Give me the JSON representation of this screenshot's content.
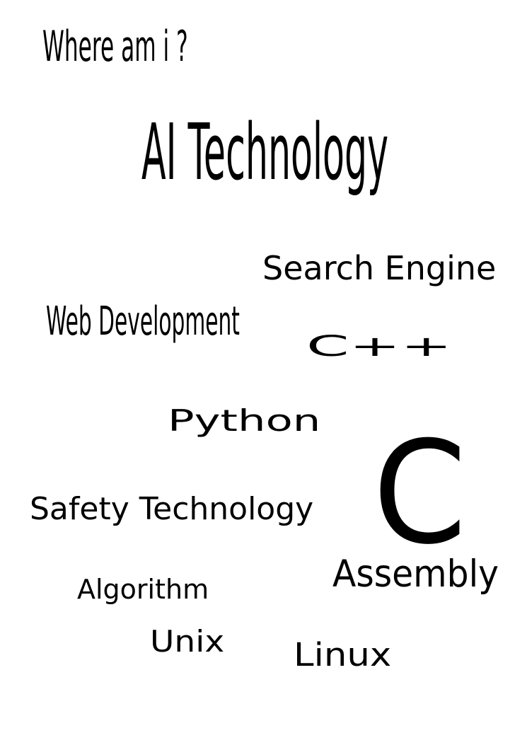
{
  "heading": "Where am i ?",
  "words": {
    "ai_technology": "AI Technology",
    "search_engine": "Search Engine",
    "web_development": "Web Development",
    "cpp": "C++",
    "python": "Python",
    "c": "C",
    "safety_technology": "Safety Technology",
    "assembly": "Assembly",
    "algorithm": "Algorithm",
    "unix": "Unix",
    "linux": "Linux"
  },
  "colors": {
    "background": "#ffffff",
    "text": "#000000"
  }
}
